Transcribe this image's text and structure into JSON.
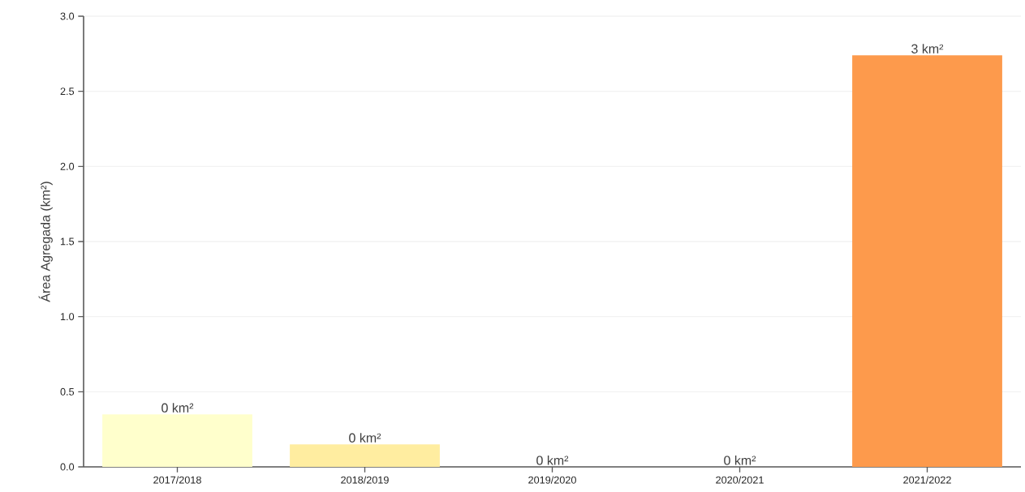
{
  "chart_data": {
    "type": "bar",
    "ylabel": "Área Agregada (km²)",
    "categories": [
      "2017/2018",
      "2018/2019",
      "2019/2020",
      "2020/2021",
      "2021/2022"
    ],
    "values": [
      0.35,
      0.15,
      0,
      0,
      2.74
    ],
    "colors": [
      "#ffffcc",
      "#ffeda0",
      "#fed976",
      "#feb24c",
      "#fd9a4c"
    ],
    "value_labels": [
      "0 km²",
      "0 km²",
      "0 km²",
      "0 km²",
      "3 km²"
    ],
    "ylim": [
      0,
      3
    ],
    "yticks": [
      {
        "value": 0,
        "label": "0.0"
      },
      0.5,
      {
        "value": 1,
        "label": "1.0"
      },
      1.5,
      {
        "value": 2,
        "label": "2.0"
      },
      2.5,
      {
        "value": 3,
        "label": "3.0"
      }
    ],
    "grid": "y"
  }
}
